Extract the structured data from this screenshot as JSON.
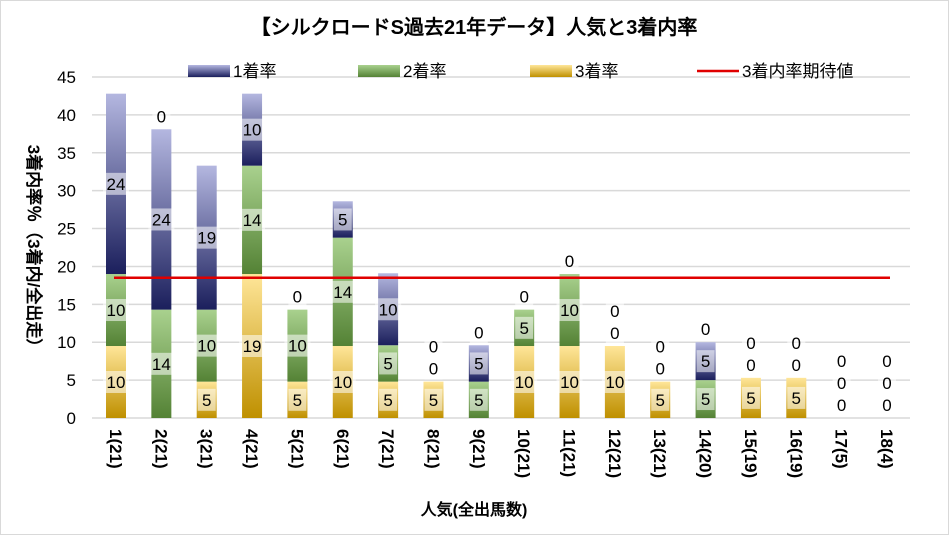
{
  "chart_data": {
    "type": "bar",
    "stacked": true,
    "title": "【シルクロードS過去21年データ】人気と3着内率",
    "xlabel": "人気(全出馬数)",
    "ylabel": "3着内率％（3着内/全出走）",
    "ylim": [
      0,
      45
    ],
    "yticks": [
      0,
      5,
      10,
      15,
      20,
      25,
      30,
      35,
      40,
      45
    ],
    "grid": true,
    "legend_position": "top",
    "categories": [
      "1(21)",
      "2(21)",
      "3(21)",
      "4(21)",
      "5(21)",
      "6(21)",
      "7(21)",
      "8(21)",
      "9(21)",
      "10(21)",
      "11(21)",
      "12(21)",
      "13(21)",
      "14(20)",
      "15(19)",
      "16(19)",
      "17(5)",
      "18(4)"
    ],
    "series": [
      {
        "name": "3着率",
        "color_top": "#ffe699",
        "color_bottom": "#bf9000",
        "values": [
          9.5,
          0,
          4.8,
          19.0,
          4.8,
          9.5,
          4.8,
          4.8,
          0,
          9.5,
          9.5,
          9.5,
          4.8,
          0,
          5.3,
          5.3,
          0,
          0
        ]
      },
      {
        "name": "2着率",
        "color_top": "#a9d18e",
        "color_bottom": "#548235",
        "values": [
          9.5,
          14.3,
          9.5,
          14.3,
          9.5,
          14.3,
          4.8,
          0,
          4.8,
          4.8,
          9.5,
          0,
          0,
          5.0,
          0,
          0,
          0,
          0
        ]
      },
      {
        "name": "1着率",
        "color_top": "#b4b7e0",
        "color_bottom": "#1b1f5c",
        "values": [
          23.8,
          23.8,
          19.0,
          9.5,
          0,
          4.8,
          9.5,
          0,
          4.8,
          0,
          0,
          0,
          0,
          5.0,
          0,
          0,
          0,
          0
        ]
      }
    ],
    "lines": [
      {
        "name": "3着内率期待値",
        "color": "#e00000",
        "value": 18.5
      }
    ],
    "legend_order": [
      "1着率",
      "2着率",
      "3着率",
      "3着内率期待値"
    ]
  }
}
